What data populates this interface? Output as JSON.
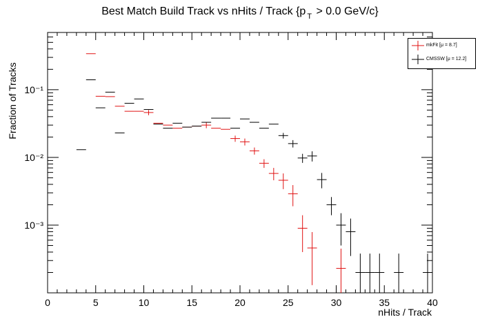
{
  "chart_data": {
    "type": "scatter",
    "title_main": "Best Match Build Track vs nHits / Track {p",
    "title_sub": "T",
    "title_tail": " > 0.0 GeV/c}",
    "xlabel": "nHits / Track",
    "ylabel": "Fraction of Tracks",
    "xlim": [
      0,
      40
    ],
    "ylim": [
      0.0001,
      0.7
    ],
    "y_scale": "log",
    "x_ticks": [
      "0",
      "5",
      "10",
      "15",
      "20",
      "25",
      "30",
      "35",
      "40"
    ],
    "y_ticks": [
      {
        "value": 0.1,
        "label": "10⁻¹"
      },
      {
        "value": 0.01,
        "label": "10⁻²"
      },
      {
        "value": 0.001,
        "label": "10⁻³"
      }
    ],
    "grid": false,
    "legend_position": "top-right",
    "series": [
      {
        "name": "mkFit",
        "legend": "mkFit  [μ =  8.7]",
        "color": "#e01010",
        "points": [
          {
            "x": 4.5,
            "y": 0.34,
            "err": 0
          },
          {
            "x": 5.5,
            "y": 0.08,
            "err": 0
          },
          {
            "x": 6.5,
            "y": 0.079,
            "err": 0
          },
          {
            "x": 7.5,
            "y": 0.057,
            "err": 0
          },
          {
            "x": 8.5,
            "y": 0.048,
            "err": 0
          },
          {
            "x": 9.5,
            "y": 0.048,
            "err": 0
          },
          {
            "x": 10.5,
            "y": 0.046,
            "err": 0.004
          },
          {
            "x": 11.5,
            "y": 0.032,
            "err": 0
          },
          {
            "x": 12.5,
            "y": 0.03,
            "err": 0
          },
          {
            "x": 13.5,
            "y": 0.027,
            "err": 0
          },
          {
            "x": 14.5,
            "y": 0.028,
            "err": 0
          },
          {
            "x": 15.5,
            "y": 0.029,
            "err": 0
          },
          {
            "x": 16.5,
            "y": 0.03,
            "err": 0.003
          },
          {
            "x": 17.5,
            "y": 0.027,
            "err": 0
          },
          {
            "x": 18.5,
            "y": 0.026,
            "err": 0
          },
          {
            "x": 19.5,
            "y": 0.019,
            "err": 0.002
          },
          {
            "x": 20.5,
            "y": 0.017,
            "err": 0.002
          },
          {
            "x": 21.5,
            "y": 0.0125,
            "err": 0.0015
          },
          {
            "x": 22.5,
            "y": 0.0082,
            "err": 0.0012
          },
          {
            "x": 23.5,
            "y": 0.0058,
            "err": 0.0012
          },
          {
            "x": 24.5,
            "y": 0.0046,
            "err": 0.0012
          },
          {
            "x": 25.5,
            "y": 0.0029,
            "err": 0.001
          },
          {
            "x": 26.5,
            "y": 0.0009,
            "err": 0.0005
          },
          {
            "x": 27.5,
            "y": 0.00046,
            "err": 0.00033
          },
          {
            "x": 30.5,
            "y": 0.00023,
            "err": 0.00022
          }
        ]
      },
      {
        "name": "CMSSW",
        "legend": "CMSSW  [μ = 12.2]",
        "color": "#000000",
        "points": [
          {
            "x": 3.5,
            "y": 0.013,
            "err": 0
          },
          {
            "x": 4.5,
            "y": 0.14,
            "err": 0
          },
          {
            "x": 5.5,
            "y": 0.054,
            "err": 0
          },
          {
            "x": 6.5,
            "y": 0.092,
            "err": 0
          },
          {
            "x": 7.5,
            "y": 0.023,
            "err": 0
          },
          {
            "x": 8.5,
            "y": 0.063,
            "err": 0
          },
          {
            "x": 9.5,
            "y": 0.073,
            "err": 0
          },
          {
            "x": 10.5,
            "y": 0.051,
            "err": 0
          },
          {
            "x": 11.5,
            "y": 0.031,
            "err": 0
          },
          {
            "x": 12.5,
            "y": 0.027,
            "err": 0
          },
          {
            "x": 13.5,
            "y": 0.032,
            "err": 0
          },
          {
            "x": 14.5,
            "y": 0.028,
            "err": 0
          },
          {
            "x": 15.5,
            "y": 0.029,
            "err": 0
          },
          {
            "x": 16.5,
            "y": 0.033,
            "err": 0
          },
          {
            "x": 17.5,
            "y": 0.038,
            "err": 0
          },
          {
            "x": 18.5,
            "y": 0.038,
            "err": 0
          },
          {
            "x": 19.5,
            "y": 0.027,
            "err": 0
          },
          {
            "x": 20.5,
            "y": 0.037,
            "err": 0
          },
          {
            "x": 21.5,
            "y": 0.033,
            "err": 0
          },
          {
            "x": 22.5,
            "y": 0.027,
            "err": 0
          },
          {
            "x": 23.5,
            "y": 0.031,
            "err": 0
          },
          {
            "x": 24.5,
            "y": 0.021,
            "err": 0.002
          },
          {
            "x": 25.5,
            "y": 0.016,
            "err": 0.002
          },
          {
            "x": 26.5,
            "y": 0.0098,
            "err": 0.0015
          },
          {
            "x": 27.5,
            "y": 0.0105,
            "err": 0.0018
          },
          {
            "x": 28.5,
            "y": 0.0047,
            "err": 0.0012
          },
          {
            "x": 29.5,
            "y": 0.002,
            "err": 0.0006
          },
          {
            "x": 30.5,
            "y": 0.001,
            "err": 0.0005
          },
          {
            "x": 31.5,
            "y": 0.0008,
            "err": 0.00045
          },
          {
            "x": 32.5,
            "y": 0.0002,
            "err": 0.00018
          },
          {
            "x": 33.5,
            "y": 0.0002,
            "err": 0.00018
          },
          {
            "x": 34.5,
            "y": 0.0002,
            "err": 0.00018
          },
          {
            "x": 36.5,
            "y": 0.0002,
            "err": 0.00018
          },
          {
            "x": 39.5,
            "y": 0.0002,
            "err": 0.00018
          }
        ]
      }
    ]
  }
}
